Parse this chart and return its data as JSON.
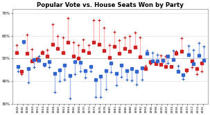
{
  "title": "Popular Vote vs. House Seats Won by Party",
  "years": [
    1944,
    1946,
    1948,
    1950,
    1952,
    1954,
    1956,
    1958,
    1960,
    1962,
    1964,
    1966,
    1968,
    1970,
    1972,
    1974,
    1976,
    1978,
    1980,
    1982,
    1984,
    1986,
    1988,
    1990,
    1992,
    1994,
    1996,
    1998,
    2000,
    2002,
    2004,
    2006,
    2008,
    2010,
    2012,
    2014,
    2016
  ],
  "dem_vote": [
    52.7,
    44.3,
    52.4,
    49.0,
    49.7,
    52.7,
    51.1,
    56.1,
    54.4,
    52.5,
    57.2,
    50.9,
    50.0,
    53.4,
    52.7,
    57.1,
    56.2,
    53.5,
    50.4,
    55.2,
    52.1,
    54.5,
    53.3,
    55.0,
    50.8,
    45.5,
    48.5,
    47.8,
    47.4,
    46.4,
    46.5,
    52.3,
    53.2,
    44.9,
    48.8,
    45.6,
    48.0
  ],
  "dem_seats": [
    55.8,
    43.2,
    60.6,
    54.0,
    49.0,
    53.3,
    53.8,
    65.0,
    60.0,
    59.3,
    67.8,
    57.0,
    55.8,
    58.5,
    55.8,
    67.0,
    67.1,
    63.7,
    55.9,
    61.8,
    58.2,
    59.3,
    59.8,
    61.4,
    59.3,
    46.6,
    47.5,
    48.5,
    51.3,
    51.0,
    46.4,
    53.2,
    59.1,
    44.3,
    46.2,
    43.2,
    44.4
  ],
  "rep_vote": [
    46.5,
    57.5,
    45.6,
    49.5,
    49.3,
    47.3,
    48.7,
    43.5,
    44.8,
    47.0,
    42.5,
    48.7,
    48.2,
    44.5,
    46.4,
    40.5,
    42.1,
    44.7,
    48.0,
    43.3,
    47.0,
    44.6,
    45.5,
    44.3,
    45.9,
    52.4,
    48.9,
    48.9,
    49.2,
    50.9,
    49.4,
    44.3,
    42.6,
    51.7,
    47.6,
    51.2,
    49.1
  ],
  "rep_seats": [
    44.2,
    56.8,
    39.4,
    46.0,
    51.0,
    46.7,
    46.2,
    35.0,
    40.0,
    40.7,
    32.2,
    43.0,
    44.2,
    41.5,
    44.2,
    33.0,
    32.9,
    36.3,
    44.1,
    38.2,
    41.8,
    40.7,
    40.2,
    38.6,
    40.7,
    53.4,
    52.5,
    51.5,
    48.7,
    48.0,
    53.6,
    46.8,
    40.9,
    55.6,
    53.8,
    56.8,
    55.4
  ],
  "ylim": [
    30,
    72
  ],
  "yticks": [
    30,
    40,
    50,
    60,
    70
  ],
  "background": "#ffffff",
  "dem_color": "#cc2222",
  "rep_color": "#3366cc",
  "dem_fill": "#ffbbbb",
  "rep_fill": "#aabbee"
}
